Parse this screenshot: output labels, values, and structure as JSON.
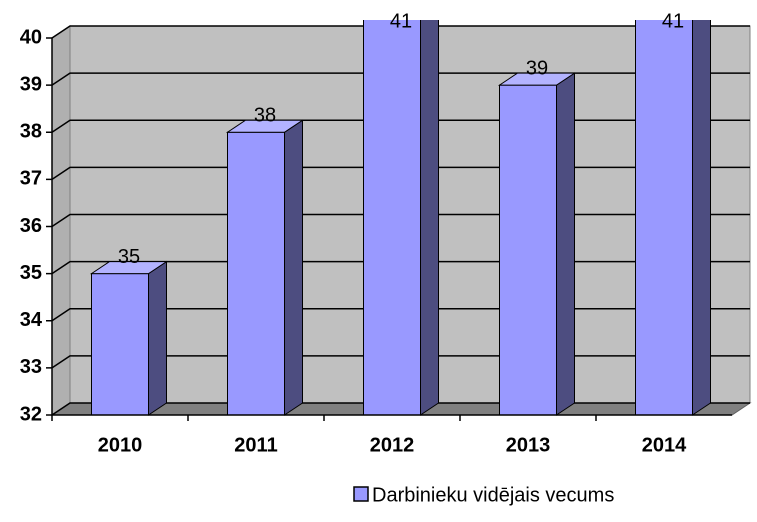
{
  "chart_data": {
    "type": "bar3d",
    "categories": [
      "2010",
      "2011",
      "2012",
      "2013",
      "2014"
    ],
    "series": [
      {
        "name": "Darbinieku vidējais vecums",
        "color": "#9999ff",
        "values": [
          35,
          38,
          41,
          39,
          41
        ]
      }
    ],
    "ylim": [
      32,
      40
    ],
    "yticks": [
      32,
      33,
      34,
      35,
      36,
      37,
      38,
      39,
      40
    ],
    "grid": true,
    "legend": "bottom"
  }
}
